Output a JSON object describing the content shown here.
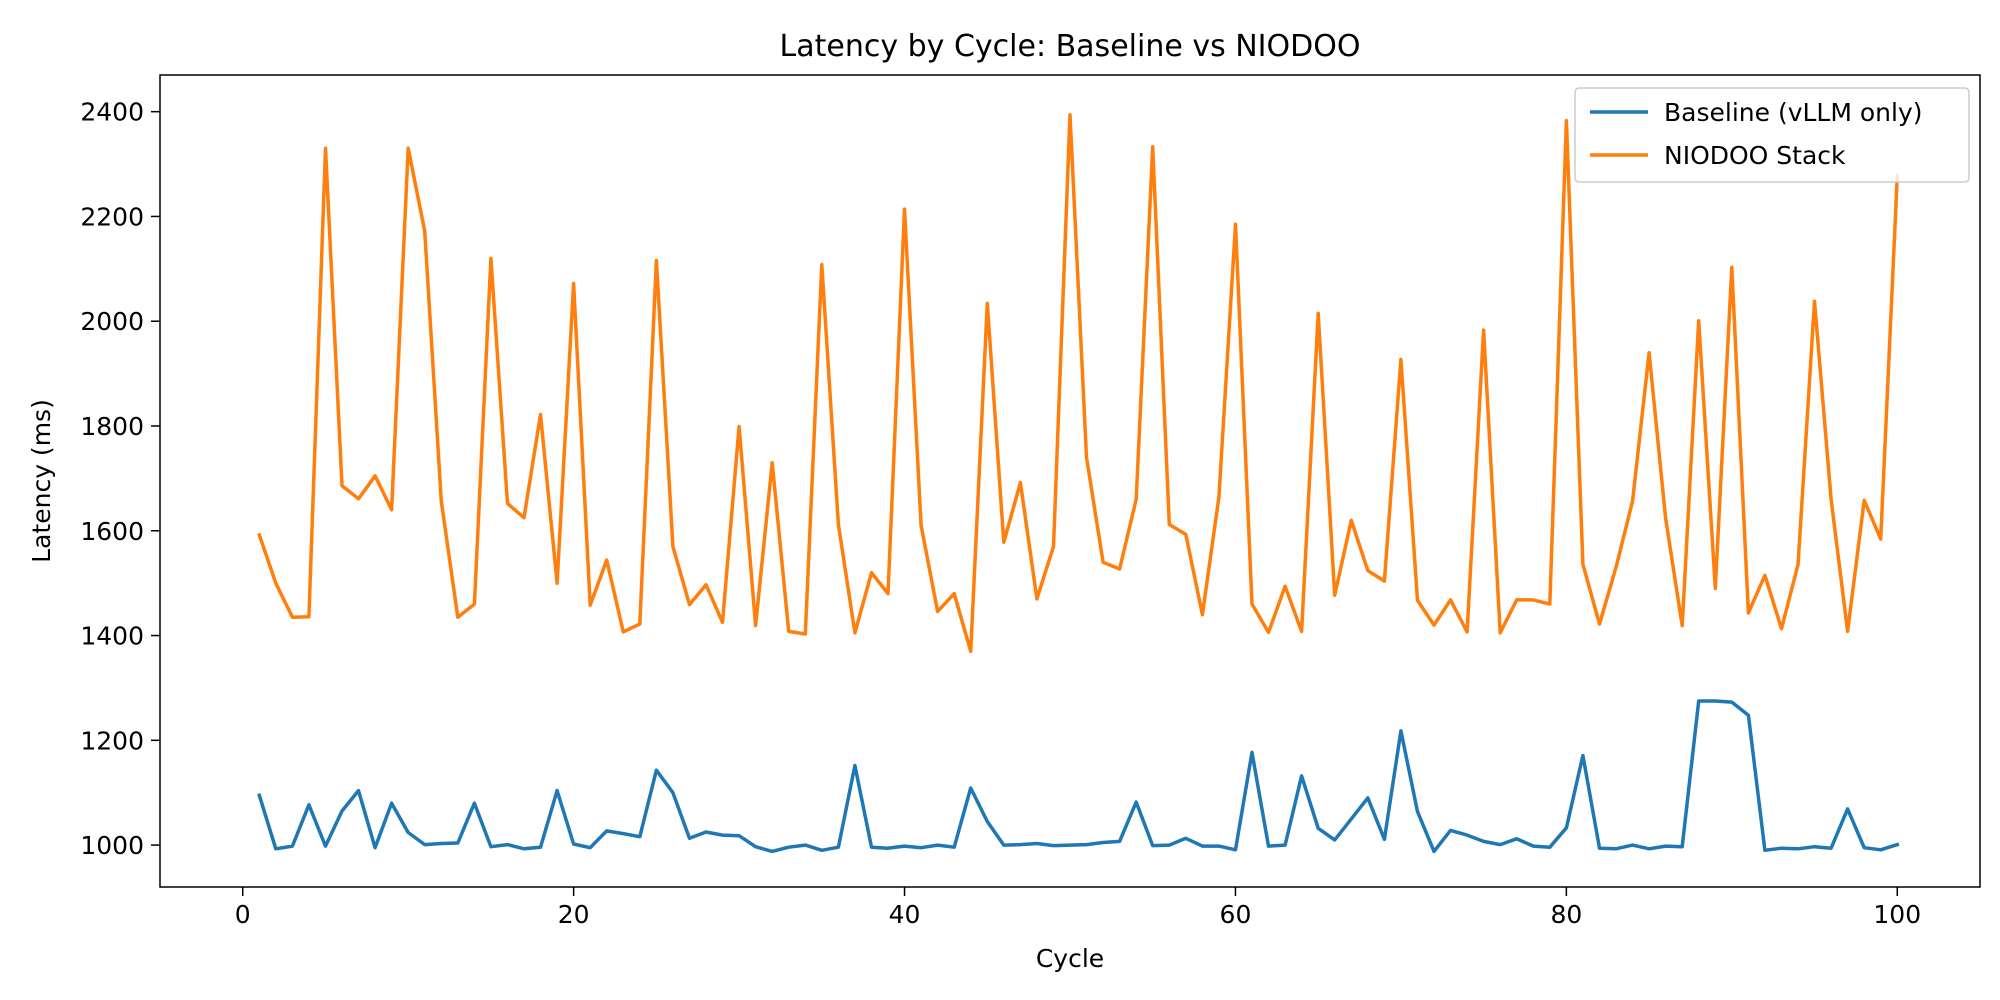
{
  "chart_data": {
    "type": "line",
    "title": "Latency by Cycle: Baseline vs NIODOO",
    "xlabel": "Cycle",
    "ylabel": "Latency (ms)",
    "xlim": [
      -5,
      105
    ],
    "ylim": [
      920,
      2470
    ],
    "x_ticks": [
      0,
      20,
      40,
      60,
      80,
      100
    ],
    "y_ticks": [
      1000,
      1200,
      1400,
      1600,
      1800,
      2000,
      2200,
      2400
    ],
    "grid": false,
    "legend_position": "top-right",
    "x": [
      1,
      2,
      3,
      4,
      5,
      6,
      7,
      8,
      9,
      10,
      11,
      12,
      13,
      14,
      15,
      16,
      17,
      18,
      19,
      20,
      21,
      22,
      23,
      24,
      25,
      26,
      27,
      28,
      29,
      30,
      31,
      32,
      33,
      34,
      35,
      36,
      37,
      38,
      39,
      40,
      41,
      42,
      43,
      44,
      45,
      46,
      47,
      48,
      49,
      50,
      51,
      52,
      53,
      54,
      55,
      56,
      57,
      58,
      59,
      60,
      61,
      62,
      63,
      64,
      65,
      66,
      67,
      68,
      69,
      70,
      71,
      72,
      73,
      74,
      75,
      76,
      77,
      78,
      79,
      80,
      81,
      82,
      83,
      84,
      85,
      86,
      87,
      88,
      89,
      90,
      91,
      92,
      93,
      94,
      95,
      96,
      97,
      98,
      99,
      100
    ],
    "series": [
      {
        "name": "Baseline (vLLM only)",
        "color": "#1f77b4",
        "values": [
          1095,
          993,
          998,
          1077,
          998,
          1065,
          1104,
          995,
          1080,
          1024,
          1001,
          1003,
          1004,
          1080,
          997,
          1001,
          993,
          996,
          1104,
          1002,
          995,
          1027,
          1022,
          1016,
          1143,
          1100,
          1013,
          1025,
          1019,
          1018,
          997,
          988,
          996,
          1000,
          990,
          996,
          1152,
          996,
          994,
          998,
          995,
          1000,
          996,
          1109,
          1045,
          1000,
          1001,
          1003,
          999,
          1000,
          1001,
          1005,
          1007,
          1082,
          999,
          1000,
          1013,
          998,
          998,
          991,
          1177,
          998,
          1000,
          1132,
          1032,
          1010,
          1050,
          1090,
          1011,
          1218,
          1064,
          988,
          1028,
          1019,
          1007,
          1001,
          1012,
          998,
          996,
          1033,
          1171,
          994,
          993,
          1000,
          993,
          998,
          997,
          1275,
          1275,
          1273,
          1248,
          990,
          994,
          993,
          997,
          994,
          1069,
          995,
          991,
          1001
        ]
      },
      {
        "name": "NIODOO Stack",
        "color": "#ff7f0e",
        "values": [
          1592,
          1500,
          1435,
          1436,
          2330,
          1686,
          1661,
          1705,
          1640,
          2330,
          2172,
          1656,
          1435,
          1460,
          2120,
          1652,
          1625,
          1822,
          1500,
          2072,
          1458,
          1544,
          1407,
          1422,
          2116,
          1570,
          1459,
          1497,
          1425,
          1799,
          1419,
          1730,
          1408,
          1403,
          2108,
          1612,
          1405,
          1520,
          1480,
          2214,
          1610,
          1446,
          1480,
          1370,
          2034,
          1578,
          1692,
          1470,
          1570,
          2394,
          1740,
          1540,
          1527,
          1660,
          2333,
          1612,
          1593,
          1440,
          1664,
          2185,
          1460,
          1406,
          1494,
          1408,
          2015,
          1477,
          1620,
          1524,
          1504,
          1927,
          1467,
          1420,
          1468,
          1407,
          1983,
          1405,
          1468,
          1468,
          1460,
          2383,
          1536,
          1422,
          1530,
          1656,
          1940,
          1624,
          1419,
          2001,
          1490,
          2103,
          1443,
          1515,
          1413,
          1535,
          2038,
          1660,
          1408,
          1658,
          1584,
          2278
        ]
      }
    ]
  }
}
